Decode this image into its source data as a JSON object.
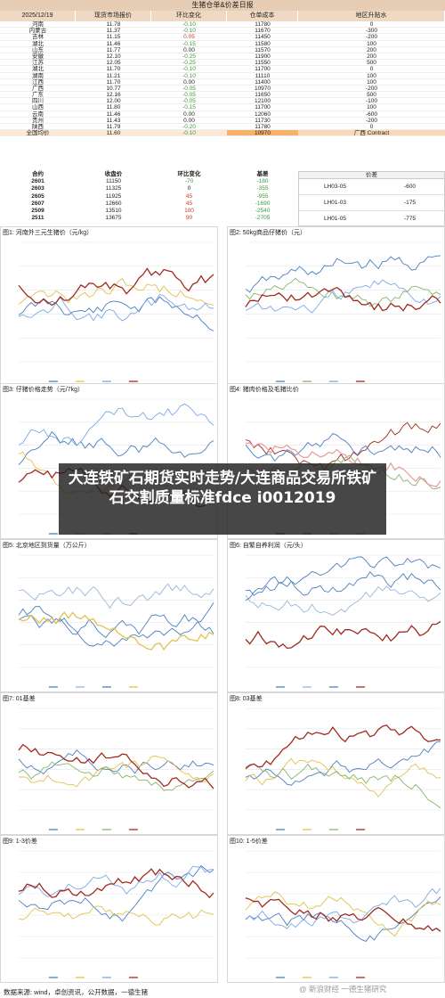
{
  "report": {
    "title": "生猪仓单&价差日报",
    "date": "2025/12/19",
    "headers": [
      "现货市场报价",
      "环比变化",
      "仓单成本",
      "地区升贴水"
    ]
  },
  "prices": [
    {
      "region": "河南",
      "price": "11.78",
      "chg": "-0.10",
      "cost": "11780",
      "prem": "0"
    },
    {
      "region": "内蒙古",
      "price": "11.37",
      "chg": "-0.10",
      "cost": "11670",
      "prem": "-300"
    },
    {
      "region": "吉林",
      "price": "11.15",
      "chg": "0.05",
      "cost": "11450",
      "prem": "-200"
    },
    {
      "region": "湖北",
      "price": "11.46",
      "chg": "-0.15",
      "cost": "11580",
      "prem": "100"
    },
    {
      "region": "山东",
      "price": "11.77",
      "chg": "0.00",
      "cost": "11570",
      "prem": "200"
    },
    {
      "region": "安徽",
      "price": "12.10",
      "chg": "-0.25",
      "cost": "11900",
      "prem": "200"
    },
    {
      "region": "江苏",
      "price": "12.05",
      "chg": "-0.25",
      "cost": "11550",
      "prem": "500"
    },
    {
      "region": "湖北",
      "price": "11.70",
      "chg": "-0.10",
      "cost": "11700",
      "prem": "0"
    },
    {
      "region": "湖南",
      "price": "11.21",
      "chg": "-0.10",
      "cost": "11110",
      "prem": "100"
    },
    {
      "region": "江西",
      "price": "11.70",
      "chg": "0.00",
      "cost": "11400",
      "prem": "100"
    },
    {
      "region": "广西",
      "price": "10.77",
      "chg": "-0.05",
      "cost": "10970",
      "prem": "-200"
    },
    {
      "region": "广东",
      "price": "12.16",
      "chg": "-0.05",
      "cost": "11650",
      "prem": "500"
    },
    {
      "region": "四川",
      "price": "12.00",
      "chg": "-0.05",
      "cost": "12100",
      "prem": "-100"
    },
    {
      "region": "山西",
      "price": "11.80",
      "chg": "-0.15",
      "cost": "11700",
      "prem": "100"
    },
    {
      "region": "云南",
      "price": "11.46",
      "chg": "0.00",
      "cost": "12060",
      "prem": "-600"
    },
    {
      "region": "贵州",
      "price": "11.43",
      "chg": "0.00",
      "cost": "11730",
      "prem": "-200"
    },
    {
      "region": "陕西",
      "price": "11.79",
      "chg": "-0.20",
      "cost": "11780",
      "prem": "0"
    },
    {
      "region": "全国均价",
      "price": "11.60",
      "chg": "-0.10",
      "cost": "10970",
      "prem": "广西 Contract"
    }
  ],
  "contracts": {
    "headers": [
      "合约",
      "收盘价",
      "环比变化",
      "基差",
      "价差"
    ],
    "rows": [
      {
        "code": "2601",
        "close": "11150",
        "chg": "-70",
        "basis": "-180"
      },
      {
        "code": "2603",
        "close": "11325",
        "chg": "0",
        "basis": "-355"
      },
      {
        "code": "2605",
        "close": "11925",
        "chg": "45",
        "basis": "-955"
      },
      {
        "code": "2607",
        "close": "12660",
        "chg": "45",
        "basis": "-1690"
      },
      {
        "code": "2509",
        "close": "13510",
        "chg": "100",
        "basis": "-2540"
      },
      {
        "code": "2511",
        "close": "13675",
        "chg": "90",
        "basis": "-2705"
      }
    ],
    "spreads": [
      {
        "name": "LH03-05",
        "value": "-600"
      },
      {
        "name": "LH01-03",
        "value": "-175"
      },
      {
        "name": "LH01-05",
        "value": "-775"
      }
    ]
  },
  "charts": [
    {
      "title": "图1: 河南外三元生猪价（元/kg）"
    },
    {
      "title": "图2: 50kg商品仔猪价（元）"
    },
    {
      "title": "图3: 仔猪价格走势（元/7kg）"
    },
    {
      "title": "图4: 猪肉价格及毛猪比价"
    },
    {
      "title": "图5: 北京地区到货量（万公斤）"
    },
    {
      "title": "图6: 自繁自养利润（元/头）"
    },
    {
      "title": "图7: 01基差"
    },
    {
      "title": "图8: 03基差"
    },
    {
      "title": "图9: 1-3价差"
    },
    {
      "title": "图10: 1-5价差"
    }
  ],
  "colors": {
    "s2022": "#4a7fc1",
    "s2023": "#e0c24d",
    "s2024": "#7aa8e6",
    "s2025": "#a02a1f",
    "s2020": "#4a7fc1",
    "s2021": "#9ab6d8",
    "green": "#87b56a",
    "pink": "#e8a1a1"
  },
  "overlay": {
    "text": "大连铁矿石期货实时走势/大连商品交易所铁矿石交割质量标准fdce i0012019"
  },
  "footer": {
    "source": "数据来源: wind，卓创资讯，公开数据，一德生猪",
    "watermark": "@ 新浪财经 一德生猪研究"
  }
}
